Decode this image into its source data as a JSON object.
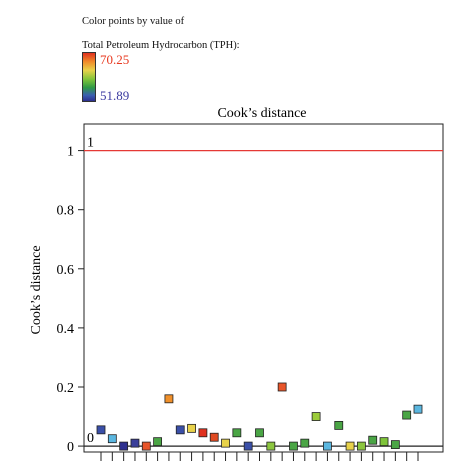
{
  "legend": {
    "title_line1": "Color points by value of",
    "title_line2": "Total Petroleum Hydrocarbon (TPH):",
    "max_label": "70.25",
    "min_label": "51.89",
    "max_color": "#e8381f",
    "min_color": "#3b3aa0"
  },
  "chart_data": {
    "type": "scatter",
    "title": "Cook’s distance",
    "xlabel": "",
    "ylabel": "Cook’s distance",
    "ylim": [
      -0.02,
      1.09
    ],
    "yticks": [
      "0",
      "0.2",
      "0.4",
      "0.6",
      "0.8",
      "1"
    ],
    "reference_lines": [
      {
        "y": 1,
        "label": "1",
        "color": "#e53935"
      },
      {
        "y": 0,
        "label": "0",
        "color": "#222222"
      }
    ],
    "points": [
      {
        "x": 1,
        "y": 0.055,
        "color": "#3a4fa8"
      },
      {
        "x": 2,
        "y": 0.025,
        "color": "#5bb7e0"
      },
      {
        "x": 3,
        "y": 0.0,
        "color": "#2d2f8f"
      },
      {
        "x": 4,
        "y": 0.01,
        "color": "#3a3f9a"
      },
      {
        "x": 5,
        "y": 0.0,
        "color": "#e8552a"
      },
      {
        "x": 6,
        "y": 0.015,
        "color": "#4aa545"
      },
      {
        "x": 7,
        "y": 0.16,
        "color": "#f0902a"
      },
      {
        "x": 8,
        "y": 0.055,
        "color": "#3a4fa8"
      },
      {
        "x": 9,
        "y": 0.06,
        "color": "#e8d24a"
      },
      {
        "x": 10,
        "y": 0.045,
        "color": "#e0311f"
      },
      {
        "x": 11,
        "y": 0.03,
        "color": "#e04a22"
      },
      {
        "x": 12,
        "y": 0.01,
        "color": "#e8d24a"
      },
      {
        "x": 13,
        "y": 0.045,
        "color": "#4aa545"
      },
      {
        "x": 14,
        "y": 0.0,
        "color": "#3a4fa8"
      },
      {
        "x": 15,
        "y": 0.045,
        "color": "#4aa545"
      },
      {
        "x": 16,
        "y": 0.0,
        "color": "#8cc63f"
      },
      {
        "x": 17,
        "y": 0.2,
        "color": "#e8552a"
      },
      {
        "x": 18,
        "y": 0.0,
        "color": "#4aa545"
      },
      {
        "x": 19,
        "y": 0.01,
        "color": "#4aa545"
      },
      {
        "x": 20,
        "y": 0.1,
        "color": "#9ccc3a"
      },
      {
        "x": 21,
        "y": 0.0,
        "color": "#5bb7e0"
      },
      {
        "x": 22,
        "y": 0.07,
        "color": "#4aa545"
      },
      {
        "x": 23,
        "y": 0.0,
        "color": "#e8d24a"
      },
      {
        "x": 24,
        "y": 0.0,
        "color": "#8cc63f"
      },
      {
        "x": 25,
        "y": 0.02,
        "color": "#4aa545"
      },
      {
        "x": 26,
        "y": 0.015,
        "color": "#7fc43a"
      },
      {
        "x": 27,
        "y": 0.005,
        "color": "#4aa545"
      },
      {
        "x": 28,
        "y": 0.105,
        "color": "#4aa545"
      },
      {
        "x": 29,
        "y": 0.125,
        "color": "#5bb7e0"
      }
    ],
    "grid": false
  }
}
